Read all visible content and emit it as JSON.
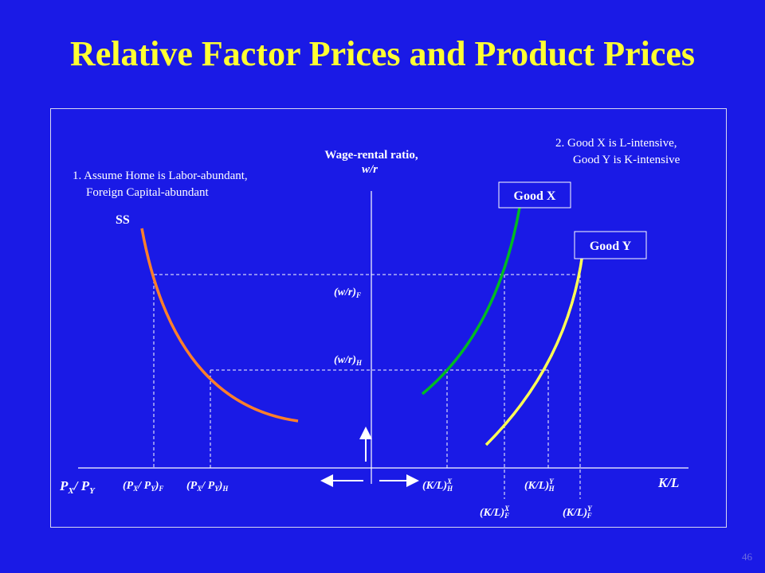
{
  "slide": {
    "title": "Relative Factor Prices and Product Prices",
    "number": "46"
  },
  "notes": {
    "note1_line1": "1. Assume Home is Labor-abundant,",
    "note1_line2": "Foreign Capital-abundant",
    "note2_line1": "2. Good X is L-intensive,",
    "note2_line2": "Good Y is K-intensive"
  },
  "colors": {
    "background": "#1a1ae6",
    "title": "#ffff33",
    "ss_curve": "#ff7f2a",
    "good_x_curve": "#00bb22",
    "good_y_curve": "#ffff55"
  },
  "chart_data": {
    "type": "line",
    "center_axis_label_line1": "Wage-rental ratio,",
    "center_axis_label_line2": "w/r",
    "left_axis_label": "PX/ PY",
    "right_axis_label": "K/L",
    "series": [
      {
        "name": "SS"
      },
      {
        "name": "Good X"
      },
      {
        "name": "Good Y"
      }
    ],
    "levels": {
      "wr_foreign": "(w/r)F",
      "wr_home": "(w/r)H"
    },
    "left_ticks": [
      "(PX/ PY)F",
      "(PX/ PY)H"
    ],
    "right_ticks": [
      "(K/L)XH",
      "(K/L)YH",
      "(K/L)XF",
      "(K/L)YF"
    ]
  }
}
